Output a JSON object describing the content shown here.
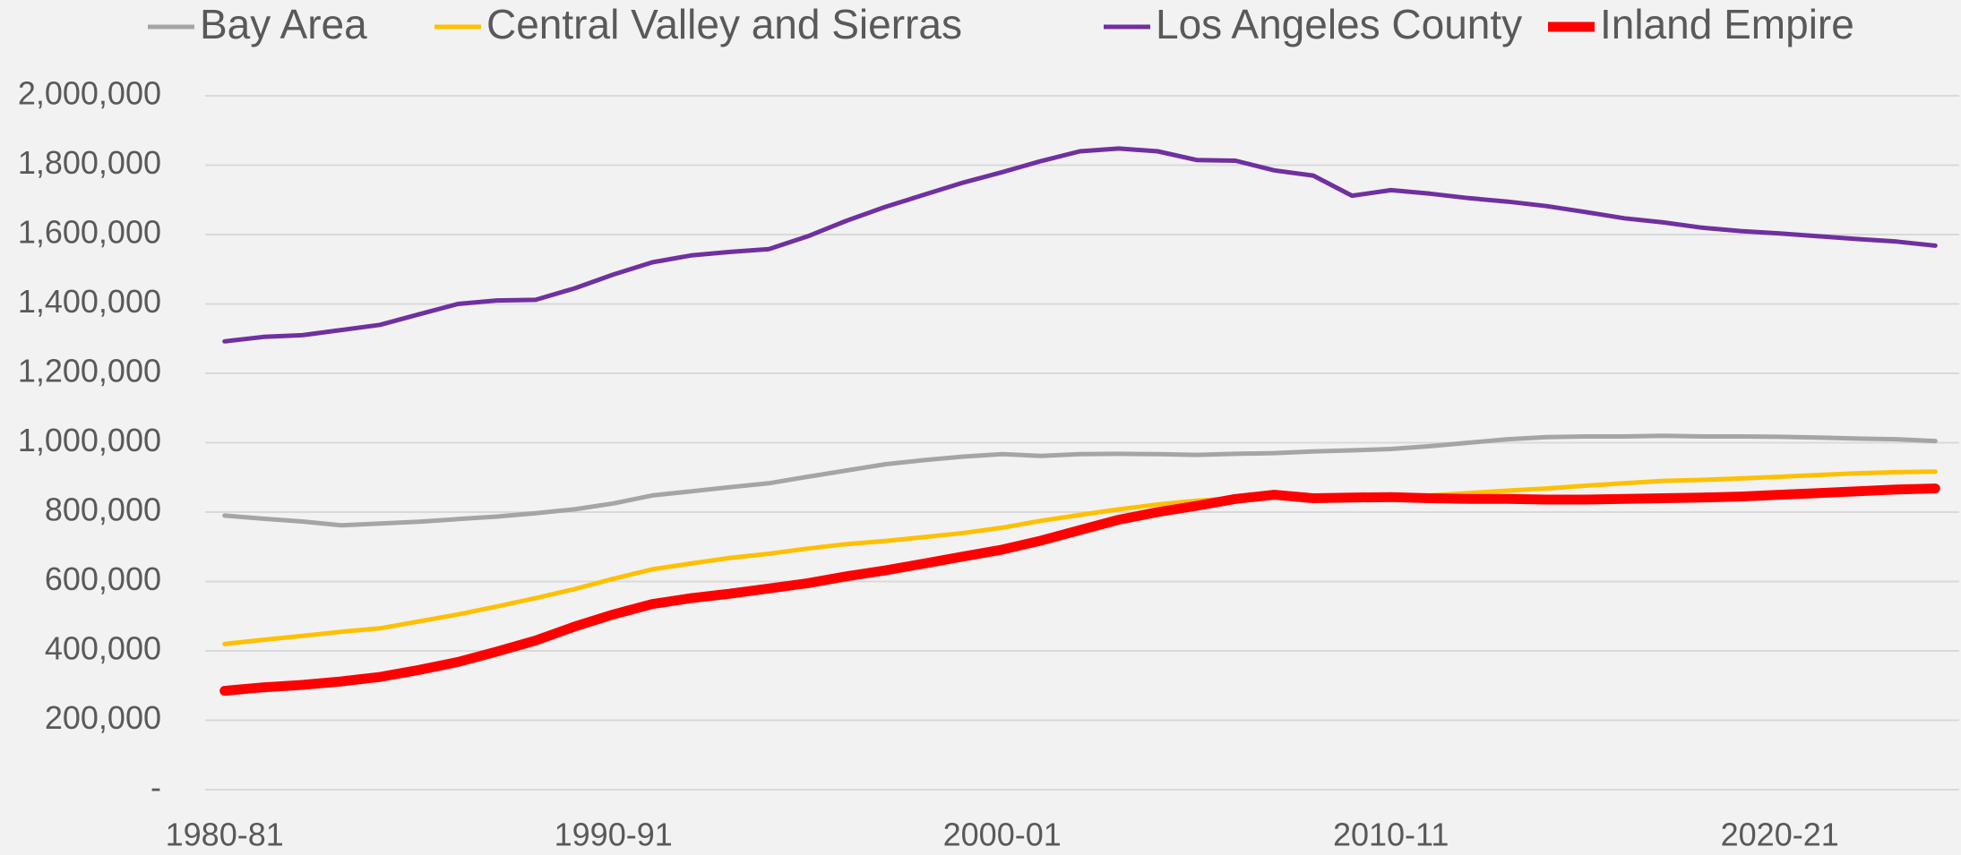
{
  "chart_data": {
    "type": "line",
    "categories": [
      "1980-81",
      null,
      null,
      null,
      null,
      null,
      null,
      null,
      null,
      null,
      "1990-91",
      null,
      null,
      null,
      null,
      null,
      null,
      null,
      null,
      null,
      "2000-01",
      null,
      null,
      null,
      null,
      null,
      null,
      null,
      null,
      null,
      "2010-11",
      null,
      null,
      null,
      null,
      null,
      null,
      null,
      null,
      null,
      "2020-21",
      null,
      null,
      null,
      null
    ],
    "ylim": [
      0,
      2000000
    ],
    "yticks": [
      {
        "value": 0,
        "label": "-"
      },
      {
        "value": 200000,
        "label": "200,000"
      },
      {
        "value": 400000,
        "label": "400,000"
      },
      {
        "value": 600000,
        "label": "600,000"
      },
      {
        "value": 800000,
        "label": "800,000"
      },
      {
        "value": 1000000,
        "label": "1,000,000"
      },
      {
        "value": 1200000,
        "label": "1,200,000"
      },
      {
        "value": 1400000,
        "label": "1,400,000"
      },
      {
        "value": 1600000,
        "label": "1,600,000"
      },
      {
        "value": 1800000,
        "label": "1,800,000"
      },
      {
        "value": 2000000,
        "label": "2,000,000"
      }
    ],
    "grid": true,
    "legend": "top",
    "series": [
      {
        "name": "Bay Area",
        "color": "#a5a5a5",
        "values": [
          790000,
          781000,
          773000,
          762000,
          767000,
          772000,
          780000,
          787000,
          797000,
          808000,
          825000,
          848000,
          860000,
          872000,
          883000,
          902000,
          920000,
          938000,
          950000,
          960000,
          967000,
          962000,
          967000,
          968000,
          967000,
          965000,
          968000,
          970000,
          975000,
          978000,
          982000,
          990000,
          1000000,
          1010000,
          1016000,
          1018000,
          1018000,
          1020000,
          1018000,
          1018000,
          1017000,
          1015000,
          1012000,
          1010000,
          1005000
        ]
      },
      {
        "name": "Central Valley and Sierras",
        "color": "#ffc000",
        "values": [
          420000,
          432000,
          443000,
          455000,
          465000,
          485000,
          505000,
          528000,
          552000,
          578000,
          608000,
          635000,
          652000,
          668000,
          680000,
          695000,
          708000,
          717000,
          728000,
          740000,
          755000,
          775000,
          792000,
          808000,
          822000,
          833000,
          840000,
          845000,
          845000,
          845000,
          845000,
          848000,
          855000,
          862000,
          868000,
          876000,
          883000,
          890000,
          893000,
          897000,
          902000,
          907000,
          912000,
          915000,
          917000
        ]
      },
      {
        "name": "Los Angeles County",
        "color": "#7030a0",
        "values": [
          1292000,
          1305000,
          1310000,
          1325000,
          1340000,
          1370000,
          1400000,
          1410000,
          1412000,
          1445000,
          1485000,
          1520000,
          1540000,
          1550000,
          1558000,
          1595000,
          1640000,
          1680000,
          1715000,
          1750000,
          1780000,
          1812000,
          1840000,
          1848000,
          1840000,
          1815000,
          1813000,
          1785000,
          1770000,
          1712000,
          1728000,
          1718000,
          1705000,
          1695000,
          1682000,
          1665000,
          1647000,
          1635000,
          1620000,
          1610000,
          1603000,
          1595000,
          1587000,
          1580000,
          1568000
        ]
      },
      {
        "name": "Inland Empire",
        "color": "#ff0000",
        "values": [
          285000,
          295000,
          302000,
          312000,
          325000,
          345000,
          368000,
          398000,
          430000,
          470000,
          505000,
          535000,
          552000,
          565000,
          580000,
          595000,
          615000,
          632000,
          652000,
          672000,
          692000,
          718000,
          748000,
          778000,
          800000,
          818000,
          838000,
          850000,
          840000,
          842000,
          843000,
          840000,
          838000,
          838000,
          836000,
          836000,
          838000,
          840000,
          842000,
          845000,
          850000,
          855000,
          860000,
          865000,
          868000
        ]
      }
    ]
  }
}
